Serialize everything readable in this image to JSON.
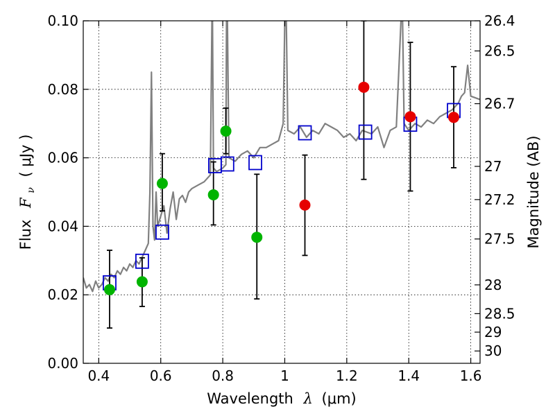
{
  "chart_data": {
    "type": "scatter",
    "title": "",
    "xlabel_main": "Wavelength",
    "xlabel_symbol": "λ",
    "xlabel_unit": "(μm)",
    "ylabel_main": "Flux",
    "ylabel_symbol": "F",
    "ylabel_sub": "ν",
    "ylabel_unit": "( μJy )",
    "y2label": "Magnitude (AB)",
    "xlim": [
      0.35,
      1.63
    ],
    "ylim": [
      0.0,
      0.1
    ],
    "grid": true,
    "x_ticks": [
      0.4,
      0.6,
      0.8,
      1.0,
      1.2,
      1.4,
      1.6
    ],
    "x_tick_labels": [
      "0.4",
      "0.6",
      "0.8",
      "1",
      "1.2",
      "1.4",
      "1.6"
    ],
    "y_ticks": [
      0.0,
      0.02,
      0.04,
      0.06,
      0.08,
      0.1
    ],
    "y_tick_labels": [
      "0.00",
      "0.02",
      "0.04",
      "0.06",
      "0.08",
      "0.10"
    ],
    "y2_ticks": [
      {
        "label": "26.4",
        "flux": 0.1
      },
      {
        "label": "26.5",
        "flux": 0.0912
      },
      {
        "label": "26.7",
        "flux": 0.0758
      },
      {
        "label": "27",
        "flux": 0.0575
      },
      {
        "label": "27.2",
        "flux": 0.0478
      },
      {
        "label": "27.5",
        "flux": 0.0363
      },
      {
        "label": "28",
        "flux": 0.0229
      },
      {
        "label": "28.5",
        "flux": 0.0145
      },
      {
        "label": "29",
        "flux": 0.0091
      },
      {
        "label": "30",
        "flux": 0.0036
      }
    ],
    "series": [
      {
        "name": "model spectrum",
        "kind": "line",
        "color": "#808080",
        "x": [
          0.35,
          0.36,
          0.37,
          0.38,
          0.39,
          0.4,
          0.41,
          0.42,
          0.43,
          0.44,
          0.45,
          0.46,
          0.47,
          0.48,
          0.49,
          0.5,
          0.51,
          0.52,
          0.53,
          0.54,
          0.55,
          0.56,
          0.565,
          0.57,
          0.575,
          0.58,
          0.585,
          0.59,
          0.6,
          0.61,
          0.62,
          0.63,
          0.64,
          0.65,
          0.66,
          0.67,
          0.68,
          0.69,
          0.7,
          0.72,
          0.74,
          0.76,
          0.765,
          0.767,
          0.77,
          0.78,
          0.8,
          0.81,
          0.812,
          0.815,
          0.82,
          0.84,
          0.86,
          0.88,
          0.9,
          0.92,
          0.94,
          0.96,
          0.98,
          0.995,
          1.0,
          1.005,
          1.01,
          1.03,
          1.05,
          1.07,
          1.09,
          1.11,
          1.13,
          1.15,
          1.17,
          1.19,
          1.21,
          1.23,
          1.25,
          1.28,
          1.3,
          1.32,
          1.34,
          1.36,
          1.375,
          1.38,
          1.385,
          1.4,
          1.42,
          1.44,
          1.46,
          1.48,
          1.5,
          1.52,
          1.54,
          1.56,
          1.57,
          1.58,
          1.59,
          1.6,
          1.63
        ],
        "values": [
          0.025,
          0.022,
          0.023,
          0.021,
          0.024,
          0.022,
          0.023,
          0.025,
          0.024,
          0.026,
          0.025,
          0.027,
          0.026,
          0.028,
          0.027,
          0.029,
          0.028,
          0.03,
          0.029,
          0.031,
          0.033,
          0.035,
          0.05,
          0.085,
          0.04,
          0.036,
          0.05,
          0.04,
          0.043,
          0.046,
          0.038,
          0.045,
          0.05,
          0.042,
          0.048,
          0.049,
          0.047,
          0.05,
          0.051,
          0.052,
          0.053,
          0.055,
          0.1,
          0.1,
          0.057,
          0.056,
          0.057,
          0.058,
          0.1,
          0.1,
          0.06,
          0.059,
          0.061,
          0.062,
          0.06,
          0.063,
          0.063,
          0.064,
          0.065,
          0.07,
          0.1,
          0.1,
          0.068,
          0.067,
          0.069,
          0.066,
          0.068,
          0.067,
          0.07,
          0.069,
          0.068,
          0.066,
          0.067,
          0.065,
          0.068,
          0.067,
          0.069,
          0.063,
          0.068,
          0.069,
          0.1,
          0.1,
          0.07,
          0.068,
          0.07,
          0.069,
          0.071,
          0.07,
          0.072,
          0.073,
          0.074,
          0.076,
          0.078,
          0.079,
          0.087,
          0.078,
          0.077
        ]
      },
      {
        "name": "model photometry",
        "kind": "square",
        "color": "#0000cc",
        "x": [
          0.435,
          0.54,
          0.605,
          0.775,
          0.815,
          0.905,
          1.065,
          1.26,
          1.405,
          1.545
        ],
        "values": [
          0.0235,
          0.0298,
          0.0383,
          0.0577,
          0.0582,
          0.0586,
          0.0673,
          0.0675,
          0.0698,
          0.0738
        ]
      },
      {
        "name": "observed (green)",
        "kind": "circle",
        "color": "#00b400",
        "x": [
          0.435,
          0.54,
          0.605,
          0.77,
          0.81,
          0.91
        ],
        "values": [
          0.0215,
          0.0238,
          0.0525,
          0.0492,
          0.0678,
          0.0368
        ],
        "err_low": [
          0.0103,
          0.0166,
          0.0445,
          0.0404,
          0.0612,
          0.0188
        ],
        "err_high": [
          0.033,
          0.0308,
          0.0612,
          0.0588,
          0.0745,
          0.0552
        ]
      },
      {
        "name": "observed (red)",
        "kind": "circle",
        "color": "#e60000",
        "x": [
          1.065,
          1.255,
          1.405,
          1.545
        ],
        "values": [
          0.0462,
          0.0806,
          0.072,
          0.0718
        ],
        "err_low": [
          0.0315,
          0.0537,
          0.0503,
          0.0571
        ],
        "err_high": [
          0.0608,
          0.1,
          0.0937,
          0.0866
        ]
      }
    ]
  }
}
